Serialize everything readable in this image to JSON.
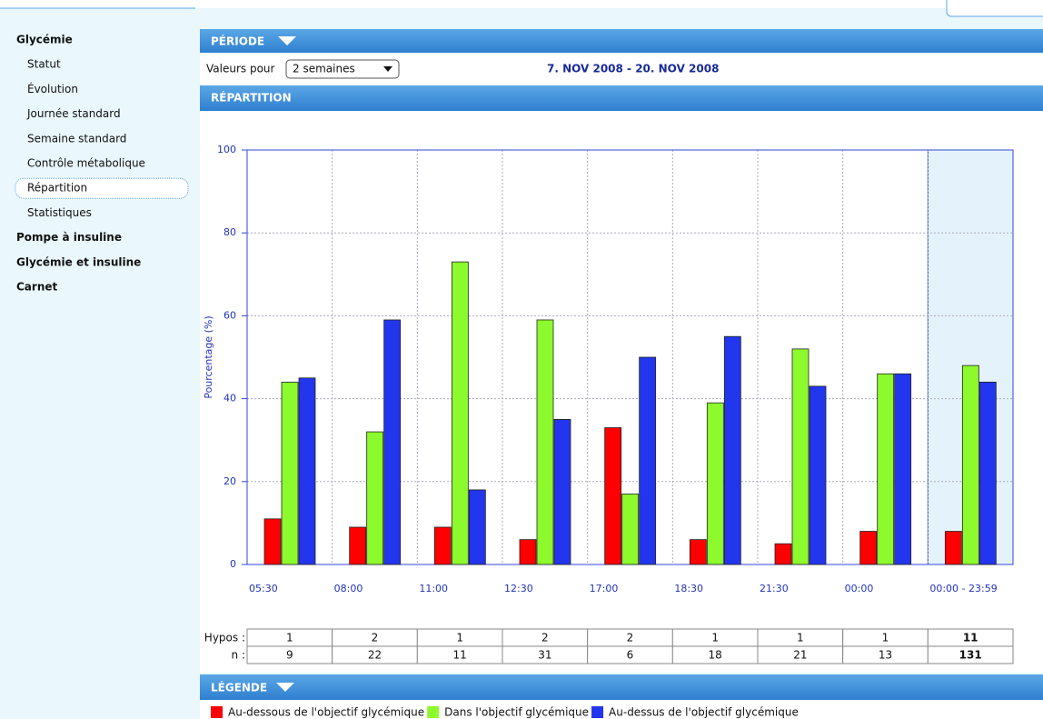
{
  "sidebar": {
    "items": [
      {
        "label": "Glycémie",
        "bold": true
      },
      {
        "label": "Statut"
      },
      {
        "label": "Évolution"
      },
      {
        "label": "Journée standard"
      },
      {
        "label": "Semaine standard"
      },
      {
        "label": "Contrôle métabolique"
      },
      {
        "label": "Répartition",
        "selected": true
      },
      {
        "label": "Statistiques"
      },
      {
        "label": "Pompe à insuline",
        "bold": true
      },
      {
        "label": "Glycémie et insuline",
        "bold": true
      },
      {
        "label": "Carnet",
        "bold": true
      }
    ]
  },
  "period": {
    "title": "PÉRIODE",
    "values_label": "Valeurs pour",
    "select": "2 semaines",
    "range": "7. NOV 2008 - 20. NOV 2008"
  },
  "chart_data": {
    "type": "bar",
    "title": "RÉPARTITION",
    "y_label": "Pourcentage (%)",
    "categories": [
      "05:30",
      "08:00",
      "11:00",
      "12:30",
      "17:00",
      "18:30",
      "21:30",
      "00:00",
      "00:00 - 23:59"
    ],
    "series": [
      {
        "name": "Au-dessous de l'objectif glycémique",
        "color": "#ff0000",
        "values": [
          11,
          9,
          9,
          6,
          33,
          6,
          5,
          8,
          8
        ]
      },
      {
        "name": "Dans l'objectif glycémique",
        "color": "#8cfa2c",
        "values": [
          44,
          32,
          73,
          59,
          17,
          39,
          52,
          46,
          48
        ]
      },
      {
        "name": "Au-dessus de l'objectif glycémique",
        "color": "#2236ee",
        "values": [
          45,
          59,
          18,
          35,
          50,
          55,
          43,
          46,
          44
        ]
      }
    ],
    "ylim": [
      0,
      100
    ],
    "yticks": [
      0,
      20,
      40,
      60,
      80,
      100
    ],
    "grid": true,
    "highlighted": 8
  },
  "table": {
    "rows": [
      {
        "label": "Hypos :",
        "values": [
          1,
          2,
          1,
          2,
          2,
          1,
          1,
          1,
          11
        ]
      },
      {
        "label": "n :",
        "values": [
          9,
          22,
          11,
          31,
          6,
          18,
          21,
          13,
          131
        ]
      }
    ]
  },
  "legend_title": "LÉGENDE"
}
